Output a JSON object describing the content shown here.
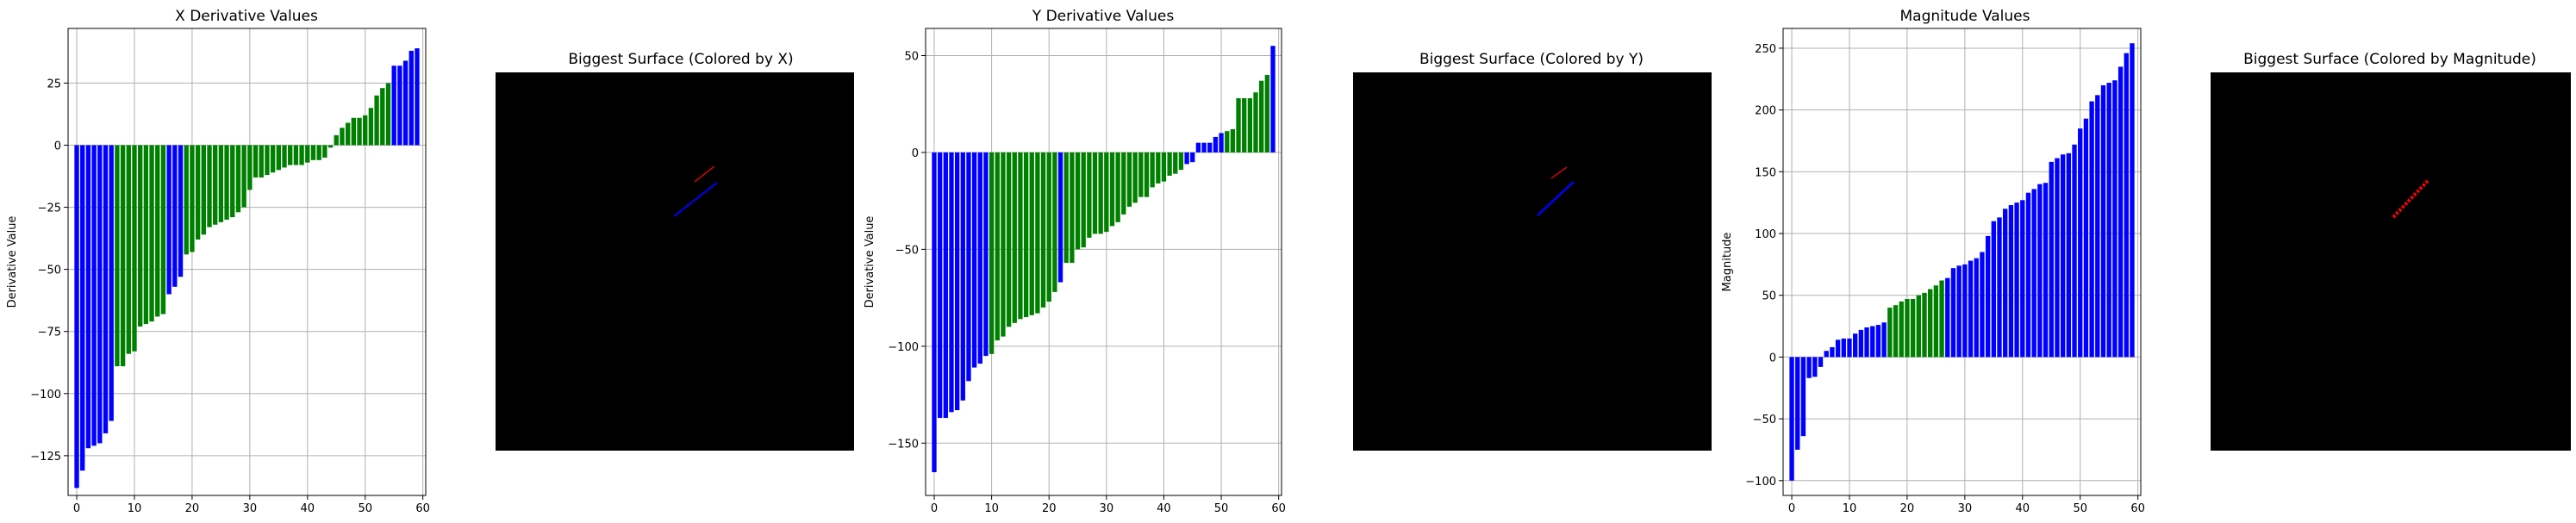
{
  "colors": {
    "green": "#008000",
    "blue": "#0000ff",
    "red": "#ff0000",
    "grid": "#b0b0b0",
    "panel_bg": "#000000"
  },
  "chart_data": [
    {
      "type": "bar",
      "title": "X Derivative Values",
      "ylabel": "Derivative Value",
      "xlabel": "",
      "xlim": [
        -1.5,
        60.5
      ],
      "ylim": [
        -141,
        47
      ],
      "xticks": [
        0,
        10,
        20,
        30,
        40,
        50,
        60
      ],
      "yticks": [
        -125,
        -100,
        -75,
        -50,
        -25,
        0,
        25
      ],
      "grid": true,
      "values": [
        -138,
        -131,
        -122,
        -121,
        -120,
        -116,
        -111,
        -89,
        -89,
        -84,
        -83,
        -73,
        -72,
        -71,
        -69,
        -68,
        -60,
        -57,
        -53,
        -44,
        -43,
        -38,
        -36,
        -33,
        -32,
        -31,
        -30,
        -29,
        -27,
        -25,
        -18,
        -13,
        -13,
        -12,
        -11,
        -10,
        -9,
        -8,
        -8,
        -8,
        -7,
        -6,
        -6,
        -5,
        -1,
        4,
        7,
        9,
        11,
        11,
        12,
        15,
        20,
        23,
        25,
        32,
        32,
        34,
        38,
        39
      ],
      "bar_colors": [
        "b",
        "b",
        "b",
        "b",
        "b",
        "b",
        "b",
        "g",
        "g",
        "g",
        "g",
        "g",
        "g",
        "g",
        "g",
        "g",
        "b",
        "b",
        "b",
        "g",
        "g",
        "g",
        "g",
        "g",
        "g",
        "g",
        "g",
        "g",
        "g",
        "g",
        "g",
        "g",
        "g",
        "g",
        "g",
        "g",
        "g",
        "g",
        "g",
        "g",
        "g",
        "g",
        "g",
        "g",
        "g",
        "g",
        "g",
        "g",
        "g",
        "g",
        "g",
        "g",
        "g",
        "g",
        "g",
        "b",
        "b",
        "b",
        "b",
        "b"
      ]
    },
    {
      "type": "bar",
      "title": "Y Derivative Values",
      "ylabel": "Derivative Value",
      "xlabel": "",
      "xlim": [
        -1.5,
        60.5
      ],
      "ylim": [
        -177,
        64
      ],
      "xticks": [
        0,
        10,
        20,
        30,
        40,
        50,
        60
      ],
      "yticks": [
        -150,
        -100,
        -50,
        0,
        50
      ],
      "grid": true,
      "values": [
        -165,
        -137,
        -137,
        -134,
        -133,
        -128,
        -118,
        -111,
        -109,
        -105,
        -104,
        -97,
        -95,
        -90,
        -88,
        -86,
        -85,
        -84,
        -83,
        -80,
        -77,
        -72,
        -67,
        -57,
        -57,
        -50,
        -49,
        -44,
        -42,
        -42,
        -41,
        -38,
        -36,
        -32,
        -28,
        -26,
        -23,
        -23,
        -18,
        -16,
        -15,
        -12,
        -11,
        -9,
        -6,
        -5,
        5,
        5,
        5,
        8,
        10,
        11,
        12,
        28,
        28,
        28,
        31,
        37,
        40,
        55
      ],
      "bar_colors": [
        "b",
        "b",
        "b",
        "b",
        "b",
        "b",
        "b",
        "b",
        "b",
        "b",
        "g",
        "g",
        "g",
        "g",
        "g",
        "g",
        "g",
        "g",
        "g",
        "g",
        "g",
        "g",
        "b",
        "g",
        "g",
        "g",
        "g",
        "g",
        "g",
        "g",
        "g",
        "g",
        "g",
        "g",
        "g",
        "g",
        "g",
        "g",
        "g",
        "g",
        "g",
        "g",
        "g",
        "g",
        "b",
        "b",
        "b",
        "b",
        "b",
        "b",
        "b",
        "g",
        "g",
        "g",
        "g",
        "g",
        "g",
        "g",
        "g",
        "b"
      ]
    },
    {
      "type": "bar",
      "title": "Magnitude Values",
      "ylabel": "Magnitude",
      "xlabel": "",
      "xlim": [
        -1.5,
        60.5
      ],
      "ylim": [
        -112,
        266
      ],
      "xticks": [
        0,
        10,
        20,
        30,
        40,
        50,
        60
      ],
      "yticks": [
        -100,
        -50,
        0,
        50,
        100,
        150,
        200,
        250
      ],
      "grid": true,
      "values": [
        -100,
        -75,
        -64,
        -17,
        -16,
        -8,
        5,
        8,
        14,
        15,
        15,
        19,
        22,
        24,
        25,
        26,
        28,
        40,
        42,
        45,
        47,
        47,
        50,
        52,
        55,
        58,
        62,
        64,
        72,
        74,
        75,
        78,
        80,
        85,
        98,
        110,
        113,
        120,
        123,
        125,
        127,
        133,
        136,
        140,
        141,
        158,
        161,
        164,
        165,
        172,
        185,
        193,
        207,
        212,
        220,
        222,
        224,
        235,
        246,
        254
      ],
      "bar_colors": [
        "b",
        "b",
        "b",
        "b",
        "b",
        "b",
        "b",
        "b",
        "b",
        "b",
        "b",
        "b",
        "b",
        "b",
        "b",
        "b",
        "b",
        "g",
        "g",
        "g",
        "g",
        "g",
        "g",
        "g",
        "g",
        "g",
        "g",
        "b",
        "b",
        "b",
        "b",
        "b",
        "b",
        "b",
        "b",
        "b",
        "b",
        "b",
        "b",
        "b",
        "b",
        "b",
        "b",
        "b",
        "b",
        "b",
        "b",
        "b",
        "b",
        "b",
        "b",
        "b",
        "b",
        "b",
        "b",
        "b",
        "b",
        "b",
        "b",
        "b"
      ]
    }
  ],
  "panels": [
    {
      "title": "Biggest Surface (Colored by X)",
      "line_colors": [
        "red",
        "blue"
      ]
    },
    {
      "title": "Biggest Surface (Colored by Y)",
      "line_colors": [
        "red",
        "blue"
      ]
    },
    {
      "title": "Biggest Surface (Colored by Magnitude)",
      "line_colors": [
        "red"
      ]
    }
  ]
}
